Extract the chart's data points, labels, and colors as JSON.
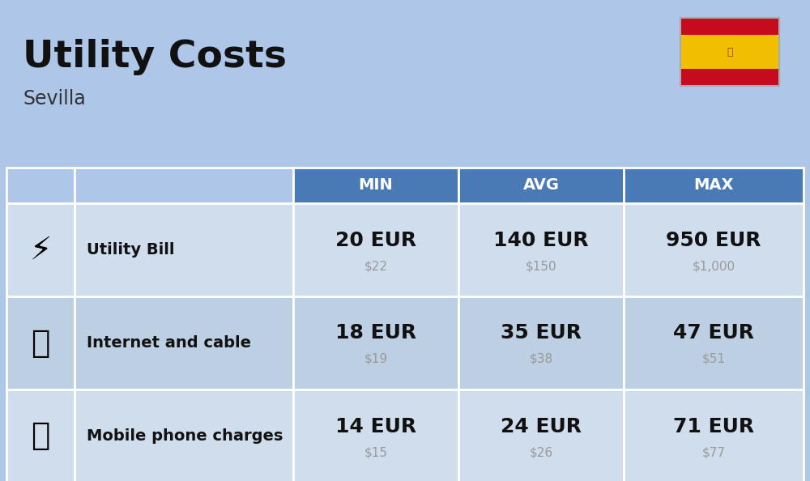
{
  "title": "Utility Costs",
  "subtitle": "Sevilla",
  "background_color": "#aec6e8",
  "header_bg_color": "#4a7ab5",
  "header_text_color": "#ffffff",
  "row_bg_color_1": "#cfdded",
  "row_bg_color_2": "#bdd0e3",
  "table_border_color": "#ffffff",
  "columns": [
    "",
    "",
    "MIN",
    "AVG",
    "MAX"
  ],
  "rows": [
    {
      "icon_label": "utility",
      "name": "Utility Bill",
      "min_eur": "20 EUR",
      "min_usd": "$22",
      "avg_eur": "140 EUR",
      "avg_usd": "$150",
      "max_eur": "950 EUR",
      "max_usd": "$1,000"
    },
    {
      "icon_label": "internet",
      "name": "Internet and cable",
      "min_eur": "18 EUR",
      "min_usd": "$19",
      "avg_eur": "35 EUR",
      "avg_usd": "$38",
      "max_eur": "47 EUR",
      "max_usd": "$51"
    },
    {
      "icon_label": "mobile",
      "name": "Mobile phone charges",
      "min_eur": "14 EUR",
      "min_usd": "$15",
      "avg_eur": "24 EUR",
      "avg_usd": "$26",
      "max_eur": "71 EUR",
      "max_usd": "$77"
    }
  ],
  "title_fontsize": 34,
  "subtitle_fontsize": 17,
  "header_fontsize": 14,
  "row_name_fontsize": 14,
  "value_fontsize": 18,
  "usd_fontsize": 11,
  "flag_red": "#c60b1e",
  "flag_yellow": "#f1bf00"
}
